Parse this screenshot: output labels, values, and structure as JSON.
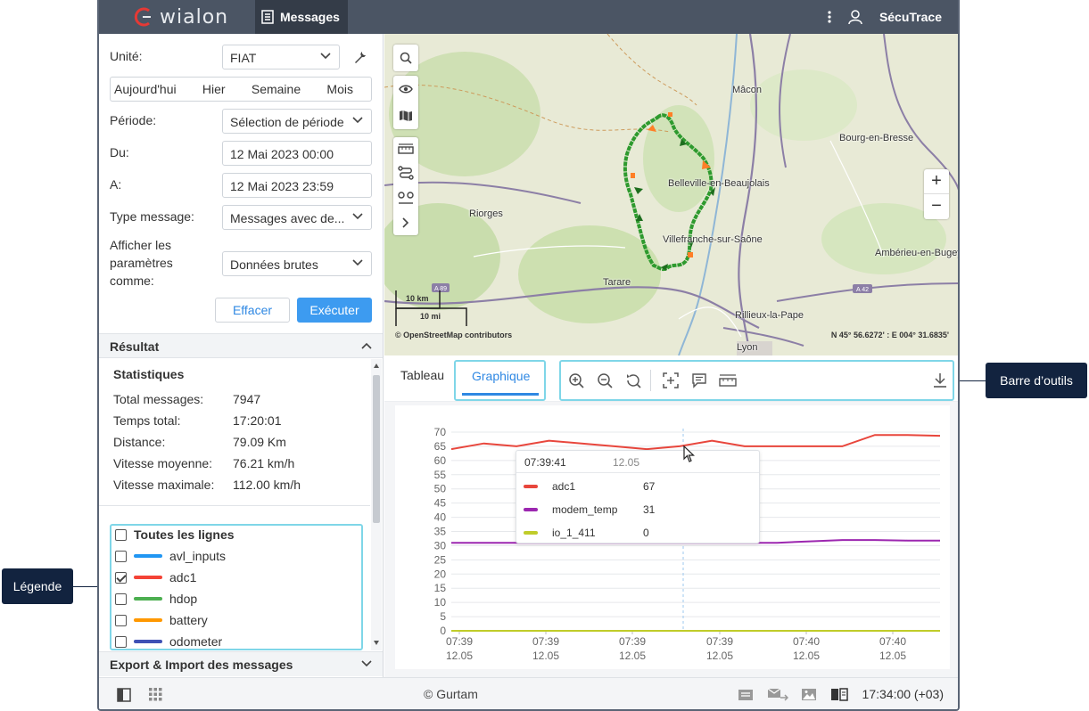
{
  "app": {
    "brand": "wialon",
    "active_tab": "Messages",
    "user": "SécuTrace"
  },
  "filters": {
    "unit_label": "Unité:",
    "unit_value": "FIAT",
    "days": [
      "Aujourd'hui",
      "Hier",
      "Semaine",
      "Mois"
    ],
    "period_label": "Période:",
    "period_value": "Sélection de période",
    "from_label": "Du:",
    "from_value": "12 Mai 2023 00:00",
    "to_label": "A:",
    "to_value": "12 Mai 2023 23:59",
    "type_label": "Type message:",
    "type_value": "Messages avec de...",
    "params_label_1": "Afficher les",
    "params_label_2": "paramètres",
    "params_label_3": "comme:",
    "params_value": "Données brutes",
    "clear_label": "Effacer",
    "run_label": "Exécuter"
  },
  "result": {
    "title": "Résultat",
    "stats_title": "Statistiques",
    "stats": [
      {
        "label": "Total messages:",
        "value": "7947"
      },
      {
        "label": "Temps total:",
        "value": "17:20:01"
      },
      {
        "label": "Distance:",
        "value": "79.09 Km"
      },
      {
        "label": "Vitesse moyenne:",
        "value": "76.21 km/h"
      },
      {
        "label": "Vitesse maximale:",
        "value": "112.00 km/h"
      }
    ]
  },
  "legend": {
    "all_label": "Toutes les lignes",
    "items": [
      {
        "name": "avl_inputs",
        "color": "#2196f3",
        "checked": false
      },
      {
        "name": "adc1",
        "color": "#f44336",
        "checked": true
      },
      {
        "name": "hdop",
        "color": "#4caf50",
        "checked": false
      },
      {
        "name": "battery",
        "color": "#ff9800",
        "checked": false
      },
      {
        "name": "odometer",
        "color": "#3f51b5",
        "checked": false
      }
    ]
  },
  "export_section": "Export & Import des messages",
  "map": {
    "cities": [
      "Mâcon",
      "Bourg-en-Bresse",
      "Belleville-en-Beaujolais",
      "Riorges",
      "Villefranche-sur-Saône",
      "Ambérieu-en-Bugey",
      "Tarare",
      "Rillieux-la-Pape",
      "Lyon"
    ],
    "roads": [
      "A 89",
      "A 42"
    ],
    "scale_km": "10 km",
    "scale_mi": "10 mi",
    "attribution": "© OpenStreetMap contributors",
    "coords": "N 45° 56.6272' : E 004° 31.6835'"
  },
  "tabs": {
    "table": "Tableau",
    "chart": "Graphique"
  },
  "chart_data": {
    "type": "line",
    "x_ticks": [
      {
        "time": "07:39",
        "date": "12.05"
      },
      {
        "time": "07:39",
        "date": "12.05"
      },
      {
        "time": "07:39",
        "date": "12.05"
      },
      {
        "time": "07:39",
        "date": "12.05"
      },
      {
        "time": "07:40",
        "date": "12.05"
      },
      {
        "time": "07:40",
        "date": "12.05"
      }
    ],
    "ylim": [
      0,
      70
    ],
    "y_ticks": [
      0,
      5,
      10,
      15,
      20,
      25,
      30,
      35,
      40,
      45,
      50,
      55,
      60,
      65,
      70
    ],
    "grid": true,
    "series": [
      {
        "name": "adc1",
        "color": "#e8463c",
        "values": [
          64,
          66,
          65,
          67,
          66,
          65,
          64,
          65,
          67,
          65,
          65,
          65,
          65,
          69,
          69,
          68.7
        ]
      },
      {
        "name": "modem_temp",
        "color": "#9c27b0",
        "values": [
          31,
          31,
          31,
          31,
          31,
          31,
          31,
          31,
          31,
          31,
          31,
          31.5,
          32,
          32,
          31.8,
          31.8
        ]
      },
      {
        "name": "io_1_411",
        "color": "#c0cc2a",
        "values": [
          0,
          0,
          0,
          0,
          0,
          0,
          0,
          0,
          0,
          0,
          0,
          0,
          0,
          0,
          0,
          0
        ]
      }
    ],
    "tooltip": {
      "time": "07:39:41",
      "date": "12.05",
      "rows": [
        {
          "name": "adc1",
          "value": "67",
          "color": "#e8463c"
        },
        {
          "name": "modem_temp",
          "value": "31",
          "color": "#9c27b0"
        },
        {
          "name": "io_1_411",
          "value": "0",
          "color": "#c0cc2a"
        }
      ]
    }
  },
  "status": {
    "copyright": "© Gurtam",
    "clock": "17:34:00 (+03)"
  },
  "callouts": {
    "toolbar": "Barre d’outils",
    "legend": "Légende"
  }
}
